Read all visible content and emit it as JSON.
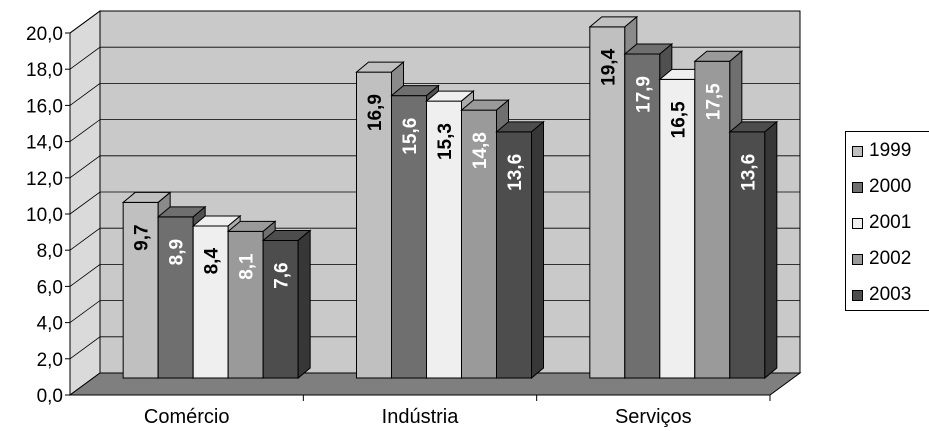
{
  "chart_data": {
    "type": "bar",
    "categories": [
      "Comércio",
      "Indústria",
      "Serviços"
    ],
    "series": [
      {
        "name": "1999",
        "values": [
          9.7,
          16.9,
          19.4
        ]
      },
      {
        "name": "2000",
        "values": [
          8.9,
          15.6,
          17.9
        ]
      },
      {
        "name": "2001",
        "values": [
          8.4,
          15.3,
          16.5
        ]
      },
      {
        "name": "2002",
        "values": [
          8.1,
          14.8,
          17.5
        ]
      },
      {
        "name": "2003",
        "values": [
          7.6,
          13.6,
          13.6
        ]
      }
    ],
    "value_labels": [
      [
        "9,7",
        "16,9",
        "19,4"
      ],
      [
        "8,9",
        "15,6",
        "17,9"
      ],
      [
        "8,4",
        "15,3",
        "16,5"
      ],
      [
        "8,1",
        "14,8",
        "17,5"
      ],
      [
        "7,6",
        "13,6",
        "13,6"
      ]
    ],
    "y_ticks": [
      "0,0",
      "2,0",
      "4,0",
      "6,0",
      "8,0",
      "10,0",
      "12,0",
      "14,0",
      "16,0",
      "18,0",
      "20,0"
    ],
    "ylim": [
      0,
      20
    ],
    "grid": true,
    "legend_position": "right",
    "colors": {
      "1999": "#c0c0c0",
      "2000": "#6f6f6f",
      "2001": "#efefef",
      "2002": "#9a9a9a",
      "2003": "#4d4d4d",
      "back_wall": "#c9c9c9",
      "side_wall": "#dadada",
      "floor": "#7f7f7f"
    }
  }
}
